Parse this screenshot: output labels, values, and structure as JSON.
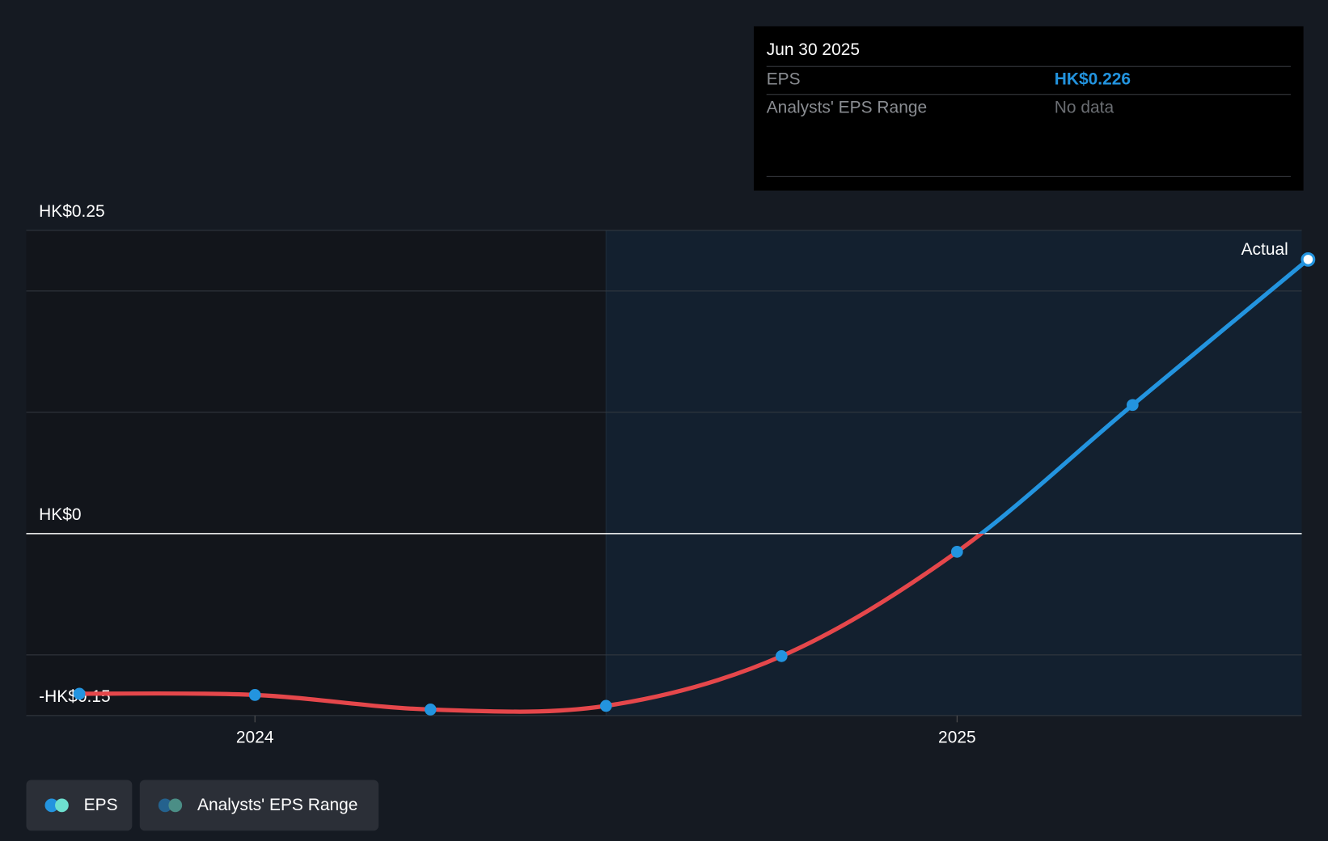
{
  "tooltip": {
    "date": "Jun 30 2025",
    "rows": [
      {
        "label": "EPS",
        "value": "HK$0.226",
        "color": "#2394df"
      },
      {
        "label": "Analysts' EPS Range",
        "value": "No data",
        "color": "#6b6e73"
      }
    ]
  },
  "legend": [
    {
      "label": "EPS",
      "colors": [
        "#2394df",
        "#6ee0cf"
      ]
    },
    {
      "label": "Analysts' EPS Range",
      "colors": [
        "#24628e",
        "#4b8e86"
      ]
    }
  ],
  "colors": {
    "negative": "#e5474b",
    "positive": "#2394df",
    "bg": "#151a22",
    "forecast_bg": "#13202f"
  },
  "chart_data": {
    "type": "line",
    "title": "",
    "xlabel": "",
    "ylabel": "",
    "ylim": [
      -0.15,
      0.25
    ],
    "y_ticks": [
      {
        "value": 0.25,
        "label": "HK$0.25"
      },
      {
        "value": 0,
        "label": "HK$0"
      },
      {
        "value": -0.15,
        "label": "-HK$0.15"
      }
    ],
    "gridlines": [
      0.25,
      0.2,
      0.1,
      0,
      -0.1,
      -0.15
    ],
    "x_ticks": [
      {
        "value": 2024.0,
        "label": "2024"
      },
      {
        "value": 2025.0,
        "label": "2025"
      }
    ],
    "xlim": [
      2023.67,
      2025.5
    ],
    "past_until": 2024.5,
    "annotation": "Actual",
    "series": [
      {
        "name": "EPS",
        "x": [
          2023.75,
          2024.0,
          2024.25,
          2024.5,
          2024.75,
          2025.0,
          2025.25,
          2025.5
        ],
        "values": [
          -0.132,
          -0.133,
          -0.145,
          -0.142,
          -0.101,
          -0.015,
          0.106,
          0.226
        ]
      }
    ]
  }
}
